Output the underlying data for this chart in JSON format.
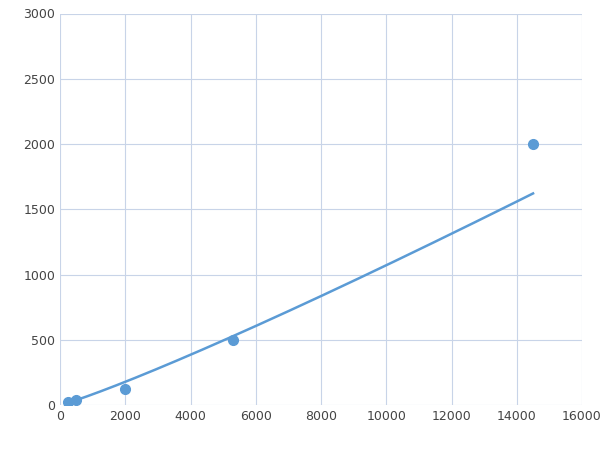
{
  "x": [
    250,
    500,
    2000,
    5300,
    14500
  ],
  "y": [
    20,
    40,
    125,
    500,
    2000
  ],
  "line_color": "#5b9bd5",
  "marker_color": "#5b9bd5",
  "marker_size": 7,
  "marker_style": "o",
  "line_width": 1.8,
  "xlim": [
    0,
    16000
  ],
  "ylim": [
    0,
    3000
  ],
  "xticks": [
    0,
    2000,
    4000,
    6000,
    8000,
    10000,
    12000,
    14000,
    16000
  ],
  "yticks": [
    0,
    500,
    1000,
    1500,
    2000,
    2500,
    3000
  ],
  "background_color": "#ffffff",
  "grid_color": "#c8d4e8",
  "figsize": [
    6.0,
    4.5
  ],
  "dpi": 100
}
